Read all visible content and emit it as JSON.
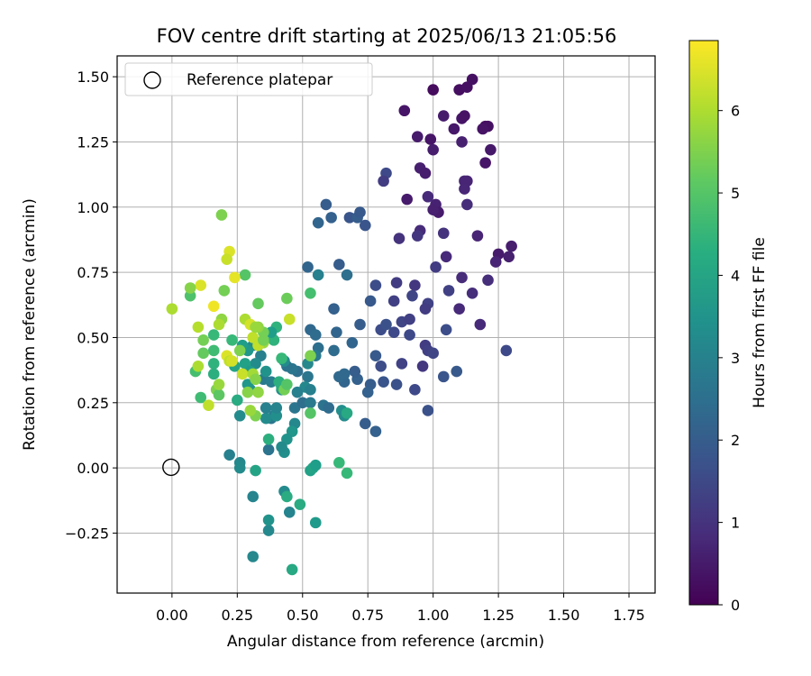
{
  "chart_data": {
    "type": "scatter",
    "title": "FOV centre drift starting at 2025/06/13 21:05:56",
    "xlabel": "Angular distance from reference (arcmin)",
    "ylabel": "Rotation from reference (arcmin)",
    "xlim": [
      -0.21,
      1.85
    ],
    "ylim": [
      -0.48,
      1.58
    ],
    "xticks": [
      0.0,
      0.25,
      0.5,
      0.75,
      1.0,
      1.25,
      1.5,
      1.75
    ],
    "xtick_labels": [
      "0.00",
      "0.25",
      "0.50",
      "0.75",
      "1.00",
      "1.25",
      "1.50",
      "1.75"
    ],
    "yticks": [
      -0.25,
      0.0,
      0.25,
      0.5,
      0.75,
      1.0,
      1.25,
      1.5
    ],
    "ytick_labels": [
      "−0.25",
      "0.00",
      "0.25",
      "0.50",
      "0.75",
      "1.00",
      "1.25",
      "1.50"
    ],
    "grid": true,
    "legend": {
      "position": "top-left",
      "entries": [
        {
          "label": "Reference platepar",
          "marker": "open-circle"
        }
      ]
    },
    "reference_point": {
      "x": 0.0,
      "y": 0.0
    },
    "colorbar": {
      "label": "Hours from first FF file",
      "colormap": "viridis",
      "range": [
        0,
        6.85
      ],
      "ticks": [
        0,
        1,
        2,
        3,
        4,
        5,
        6
      ],
      "tick_labels": [
        "0",
        "1",
        "2",
        "3",
        "4",
        "5",
        "6"
      ]
    },
    "points_xyc": [
      [
        1.0,
        1.45,
        0.2
      ],
      [
        1.1,
        1.45,
        0.25
      ],
      [
        1.13,
        1.46,
        0.3
      ],
      [
        1.15,
        1.49,
        0.3
      ],
      [
        0.89,
        1.37,
        0.4
      ],
      [
        1.04,
        1.35,
        0.5
      ],
      [
        1.11,
        1.34,
        0.4
      ],
      [
        1.12,
        1.35,
        0.35
      ],
      [
        1.08,
        1.3,
        0.45
      ],
      [
        1.2,
        1.31,
        0.25
      ],
      [
        1.21,
        1.31,
        0.3
      ],
      [
        1.19,
        1.3,
        0.35
      ],
      [
        0.94,
        1.27,
        0.5
      ],
      [
        0.99,
        1.26,
        0.4
      ],
      [
        1.11,
        1.25,
        0.6
      ],
      [
        1.0,
        1.22,
        0.55
      ],
      [
        1.22,
        1.22,
        0.45
      ],
      [
        1.2,
        1.17,
        0.4
      ],
      [
        0.95,
        1.15,
        0.6
      ],
      [
        0.97,
        1.13,
        0.55
      ],
      [
        1.12,
        1.1,
        0.7
      ],
      [
        1.13,
        1.1,
        0.7
      ],
      [
        1.12,
        1.07,
        0.75
      ],
      [
        0.98,
        1.04,
        0.8
      ],
      [
        1.13,
        1.01,
        0.9
      ],
      [
        0.9,
        1.03,
        0.5
      ],
      [
        1.01,
        1.01,
        0.65
      ],
      [
        1.02,
        0.98,
        0.5
      ],
      [
        1.0,
        0.99,
        0.6
      ],
      [
        0.95,
        0.91,
        0.85
      ],
      [
        1.04,
        0.9,
        1.0
      ],
      [
        0.94,
        0.89,
        1.1
      ],
      [
        0.87,
        0.88,
        1.0
      ],
      [
        1.17,
        0.89,
        0.7
      ],
      [
        1.25,
        0.82,
        0.5
      ],
      [
        1.3,
        0.85,
        0.55
      ],
      [
        1.29,
        0.81,
        0.6
      ],
      [
        1.24,
        0.79,
        0.7
      ],
      [
        1.05,
        0.81,
        0.8
      ],
      [
        1.01,
        0.77,
        1.2
      ],
      [
        1.11,
        0.73,
        0.85
      ],
      [
        1.21,
        0.72,
        0.9
      ],
      [
        0.93,
        0.7,
        1.1
      ],
      [
        0.86,
        0.71,
        1.2
      ],
      [
        1.06,
        0.68,
        1.3
      ],
      [
        1.15,
        0.67,
        0.9
      ],
      [
        0.85,
        0.64,
        1.3
      ],
      [
        0.92,
        0.66,
        1.4
      ],
      [
        0.98,
        0.63,
        1.35
      ],
      [
        1.1,
        0.61,
        0.8
      ],
      [
        0.97,
        0.61,
        1.2
      ],
      [
        0.88,
        0.56,
        1.4
      ],
      [
        0.85,
        0.52,
        1.5
      ],
      [
        0.91,
        0.57,
        1.3
      ],
      [
        0.8,
        0.53,
        1.6
      ],
      [
        0.82,
        0.55,
        1.7
      ],
      [
        1.05,
        0.53,
        1.6
      ],
      [
        1.18,
        0.55,
        0.8
      ],
      [
        0.91,
        0.51,
        1.5
      ],
      [
        0.97,
        0.47,
        1.2
      ],
      [
        0.98,
        0.45,
        1.3
      ],
      [
        1.0,
        0.44,
        1.4
      ],
      [
        0.96,
        0.39,
        1.1
      ],
      [
        0.88,
        0.4,
        1.35
      ],
      [
        0.93,
        0.3,
        1.5
      ],
      [
        1.04,
        0.35,
        1.8
      ],
      [
        1.09,
        0.37,
        1.9
      ],
      [
        1.28,
        0.45,
        1.5
      ],
      [
        0.86,
        0.32,
        1.7
      ],
      [
        0.81,
        0.33,
        1.8
      ],
      [
        0.8,
        0.39,
        1.6
      ],
      [
        0.98,
        0.22,
        1.7
      ],
      [
        0.78,
        0.43,
        1.9
      ],
      [
        0.76,
        0.32,
        2.0
      ],
      [
        0.75,
        0.29,
        2.1
      ],
      [
        0.74,
        0.17,
        2.0
      ],
      [
        0.78,
        0.14,
        2.1
      ],
      [
        0.71,
        0.34,
        2.1
      ],
      [
        0.7,
        0.37,
        2.0
      ],
      [
        0.69,
        0.48,
        2.2
      ],
      [
        0.72,
        0.55,
        2.0
      ],
      [
        0.66,
        0.33,
        2.2
      ],
      [
        0.64,
        0.35,
        2.3
      ],
      [
        0.66,
        0.36,
        2.3
      ],
      [
        0.62,
        0.45,
        2.4
      ],
      [
        0.63,
        0.52,
        2.2
      ],
      [
        0.62,
        0.61,
        2.1
      ],
      [
        0.64,
        0.78,
        2.0
      ],
      [
        0.67,
        0.74,
        2.5
      ],
      [
        0.76,
        0.64,
        1.9
      ],
      [
        0.78,
        0.7,
        1.6
      ],
      [
        0.82,
        1.13,
        1.5
      ],
      [
        0.81,
        1.1,
        1.2
      ],
      [
        0.68,
        0.96,
        1.8
      ],
      [
        0.71,
        0.96,
        2.0
      ],
      [
        0.72,
        0.98,
        1.9
      ],
      [
        0.74,
        0.93,
        1.8
      ],
      [
        0.59,
        1.01,
        2.0
      ],
      [
        0.61,
        0.96,
        2.1
      ],
      [
        0.56,
        0.94,
        2.2
      ],
      [
        0.52,
        0.77,
        2.2
      ],
      [
        0.56,
        0.74,
        3.0
      ],
      [
        0.53,
        0.53,
        2.3
      ],
      [
        0.55,
        0.51,
        2.4
      ],
      [
        0.56,
        0.46,
        2.5
      ],
      [
        0.55,
        0.43,
        2.8
      ],
      [
        0.52,
        0.4,
        3.2
      ],
      [
        0.52,
        0.35,
        2.7
      ],
      [
        0.51,
        0.31,
        3.2
      ],
      [
        0.53,
        0.3,
        3.0
      ],
      [
        0.48,
        0.37,
        2.5
      ],
      [
        0.46,
        0.38,
        2.7
      ],
      [
        0.44,
        0.39,
        2.6
      ],
      [
        0.43,
        0.41,
        3.3
      ],
      [
        0.48,
        0.29,
        3.0
      ],
      [
        0.47,
        0.23,
        2.7
      ],
      [
        0.5,
        0.25,
        2.5
      ],
      [
        0.53,
        0.25,
        2.8
      ],
      [
        0.58,
        0.24,
        2.6
      ],
      [
        0.6,
        0.23,
        2.4
      ],
      [
        0.65,
        0.22,
        3.4
      ],
      [
        0.66,
        0.2,
        3.3
      ],
      [
        0.47,
        0.17,
        3.2
      ],
      [
        0.46,
        0.14,
        3.6
      ],
      [
        0.44,
        0.11,
        3.5
      ],
      [
        0.43,
        0.06,
        3.4
      ],
      [
        0.42,
        0.08,
        3.3
      ],
      [
        0.37,
        0.07,
        2.6
      ],
      [
        0.37,
        0.11,
        4.3
      ],
      [
        0.38,
        0.19,
        2.7
      ],
      [
        0.39,
        0.2,
        2.9
      ],
      [
        0.36,
        0.19,
        3.3
      ],
      [
        0.4,
        0.2,
        3.4
      ],
      [
        0.36,
        0.23,
        3.0
      ],
      [
        0.4,
        0.23,
        3.1
      ],
      [
        0.35,
        0.34,
        2.8
      ],
      [
        0.38,
        0.33,
        2.9
      ],
      [
        0.42,
        0.3,
        3.4
      ],
      [
        0.42,
        0.31,
        4.2
      ],
      [
        0.41,
        0.33,
        4.3
      ],
      [
        0.36,
        0.37,
        3.5
      ],
      [
        0.34,
        0.43,
        3.0
      ],
      [
        0.33,
        0.47,
        3.2
      ],
      [
        0.32,
        0.4,
        3.3
      ],
      [
        0.31,
        0.47,
        3.3
      ],
      [
        0.29,
        0.45,
        3.6
      ],
      [
        0.27,
        0.47,
        3.8
      ],
      [
        0.28,
        0.4,
        3.9
      ],
      [
        0.3,
        0.37,
        3.7
      ],
      [
        0.3,
        0.3,
        3.5
      ],
      [
        0.29,
        0.32,
        3.6
      ],
      [
        0.24,
        0.39,
        4.0
      ],
      [
        0.23,
        0.49,
        4.6
      ],
      [
        0.25,
        0.26,
        4.2
      ],
      [
        0.26,
        0.2,
        3.3
      ],
      [
        0.22,
        0.05,
        3.0
      ],
      [
        0.26,
        0.02,
        3.2
      ],
      [
        0.26,
        0.0,
        3.3
      ],
      [
        0.32,
        -0.01,
        4.0
      ],
      [
        0.31,
        -0.11,
        3.1
      ],
      [
        0.37,
        -0.24,
        3.2
      ],
      [
        0.37,
        -0.2,
        3.5
      ],
      [
        0.31,
        -0.34,
        3.2
      ],
      [
        0.43,
        -0.09,
        3.3
      ],
      [
        0.44,
        -0.11,
        4.2
      ],
      [
        0.45,
        -0.17,
        3.1
      ],
      [
        0.46,
        -0.39,
        4.1
      ],
      [
        0.49,
        -0.14,
        4.2
      ],
      [
        0.53,
        -0.01,
        3.9
      ],
      [
        0.54,
        0.0,
        4.0
      ],
      [
        0.55,
        0.01,
        3.8
      ],
      [
        0.55,
        -0.21,
        3.7
      ],
      [
        0.64,
        0.02,
        4.6
      ],
      [
        0.67,
        -0.02,
        4.6
      ],
      [
        0.67,
        0.21,
        4.1
      ],
      [
        0.53,
        0.21,
        5.0
      ],
      [
        0.53,
        0.43,
        5.5
      ],
      [
        0.53,
        0.67,
        4.8
      ],
      [
        0.45,
        0.57,
        6.3
      ],
      [
        0.44,
        0.65,
        5.3
      ],
      [
        0.42,
        0.42,
        4.6
      ],
      [
        0.39,
        0.49,
        4.4
      ],
      [
        0.4,
        0.54,
        4.4
      ],
      [
        0.38,
        0.52,
        3.8
      ],
      [
        0.35,
        0.48,
        5.8
      ],
      [
        0.35,
        0.52,
        5.4
      ],
      [
        0.33,
        0.54,
        5.7
      ],
      [
        0.28,
        0.57,
        6.0
      ],
      [
        0.3,
        0.55,
        6.4
      ],
      [
        0.31,
        0.5,
        6.2
      ],
      [
        0.32,
        0.54,
        5.8
      ],
      [
        0.33,
        0.63,
        5.2
      ],
      [
        0.28,
        0.74,
        5.0
      ],
      [
        0.24,
        0.73,
        6.6
      ],
      [
        0.22,
        0.83,
        6.5
      ],
      [
        0.21,
        0.8,
        6.3
      ],
      [
        0.19,
        0.97,
        5.5
      ],
      [
        0.2,
        0.68,
        5.4
      ],
      [
        0.19,
        0.57,
        5.7
      ],
      [
        0.18,
        0.55,
        6.0
      ],
      [
        0.16,
        0.62,
        6.7
      ],
      [
        0.16,
        0.51,
        4.6
      ],
      [
        0.16,
        0.45,
        4.7
      ],
      [
        0.16,
        0.4,
        4.4
      ],
      [
        0.16,
        0.36,
        4.3
      ],
      [
        0.17,
        0.3,
        5.5
      ],
      [
        0.18,
        0.28,
        5.1
      ],
      [
        0.18,
        0.32,
        5.8
      ],
      [
        0.21,
        0.43,
        6.5
      ],
      [
        0.22,
        0.41,
        6.2
      ],
      [
        0.23,
        0.41,
        6.4
      ],
      [
        0.26,
        0.45,
        5.5
      ],
      [
        0.27,
        0.36,
        6.3
      ],
      [
        0.29,
        0.29,
        5.6
      ],
      [
        0.31,
        0.36,
        5.9
      ],
      [
        0.32,
        0.34,
        5.6
      ],
      [
        0.33,
        0.29,
        5.7
      ],
      [
        0.32,
        0.2,
        5.5
      ],
      [
        0.3,
        0.22,
        5.8
      ],
      [
        0.43,
        0.3,
        5.4
      ],
      [
        0.44,
        0.32,
        5.0
      ],
      [
        0.12,
        0.49,
        5.4
      ],
      [
        0.1,
        0.54,
        6.1
      ],
      [
        0.11,
        0.7,
        6.5
      ],
      [
        0.07,
        0.66,
        4.9
      ],
      [
        0.07,
        0.69,
        5.6
      ],
      [
        0.0,
        0.61,
        6.0
      ],
      [
        0.12,
        0.44,
        5.2
      ],
      [
        0.09,
        0.37,
        4.8
      ],
      [
        0.1,
        0.39,
        6.0
      ],
      [
        0.11,
        0.27,
        4.7
      ],
      [
        0.14,
        0.24,
        6.2
      ],
      [
        0.33,
        0.47,
        6.2
      ],
      [
        0.35,
        0.49,
        5.4
      ]
    ]
  }
}
